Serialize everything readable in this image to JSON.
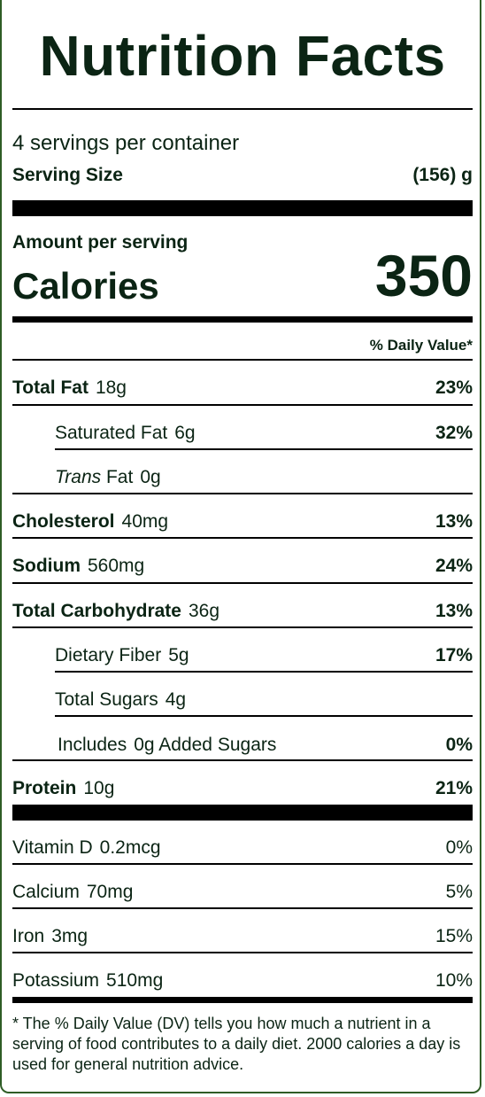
{
  "title": "Nutrition Facts",
  "servings_per_container": "4 servings per container",
  "serving_size": {
    "label": "Serving Size",
    "value": "(156) g"
  },
  "amount_per_serving": "Amount per serving",
  "calories": {
    "label": "Calories",
    "value": "350"
  },
  "daily_value_header": "% Daily Value*",
  "nutrients": [
    {
      "name": "Total Fat",
      "amount": "18g",
      "dv": "23%"
    },
    {
      "name": "Saturated Fat",
      "amount": "6g",
      "dv": "32%"
    },
    {
      "name_italic": "Trans",
      "name": " Fat",
      "amount": "0g",
      "dv": ""
    },
    {
      "name": "Cholesterol",
      "amount": "40mg",
      "dv": "13%"
    },
    {
      "name": "Sodium",
      "amount": "560mg",
      "dv": "24%"
    },
    {
      "name": "Total Carbohydrate",
      "amount": "36g",
      "dv": "13%"
    },
    {
      "name": "Dietary Fiber",
      "amount": "5g",
      "dv": "17%"
    },
    {
      "name": "Total Sugars",
      "amount": "4g",
      "dv": ""
    },
    {
      "name_prefix": "Includes",
      "amount": "0g",
      "name_suffix": "Added Sugars",
      "dv": "0%"
    },
    {
      "name": "Protein",
      "amount": "10g",
      "dv": "21%"
    }
  ],
  "vitamins": [
    {
      "name": "Vitamin D",
      "amount": "0.2mcg",
      "dv": "0%"
    },
    {
      "name": "Calcium",
      "amount": "70mg",
      "dv": "5%"
    },
    {
      "name": "Iron",
      "amount": "3mg",
      "dv": "15%"
    },
    {
      "name": "Potassium",
      "amount": "510mg",
      "dv": "10%"
    }
  ],
  "footnote": "* The % Daily Value (DV) tells you how much a nutrient in a serving of food contributes to a daily diet. 2000 calories a day is used for general nutrition advice."
}
